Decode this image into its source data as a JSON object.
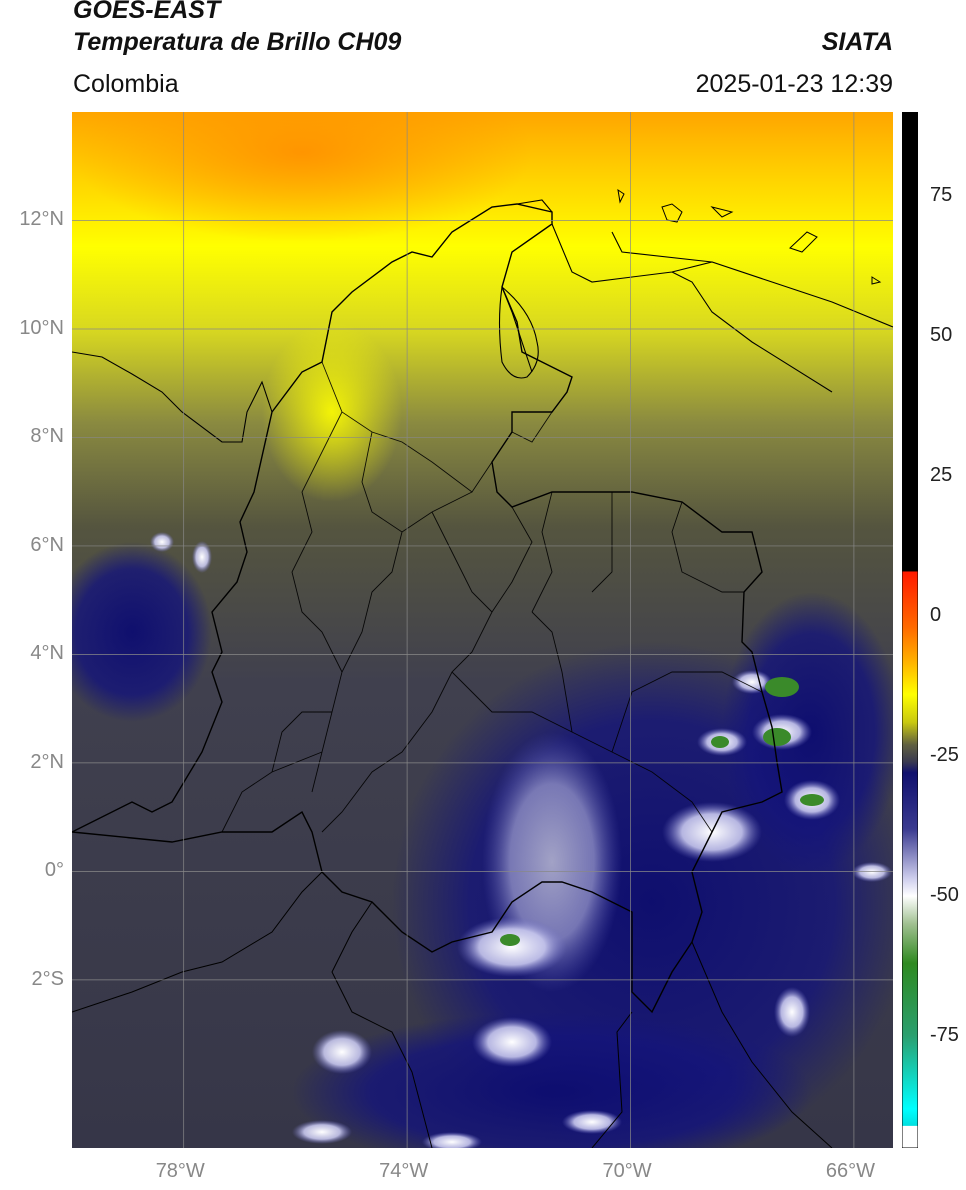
{
  "header": {
    "satellite": "GOES-EAST",
    "product": "Temperatura de Brillo CH09",
    "organization": "SIATA",
    "region": "Colombia",
    "timestamp": "2025-01-23 12:39"
  },
  "map": {
    "lon_range": [
      -80,
      -65.3
    ],
    "lat_range": [
      -5.1,
      14.0
    ],
    "lon_ticks": [
      {
        "value": -78,
        "label": "78°W"
      },
      {
        "value": -74,
        "label": "74°W"
      },
      {
        "value": -70,
        "label": "70°W"
      },
      {
        "value": -66,
        "label": "66°W"
      }
    ],
    "lat_ticks": [
      {
        "value": 12,
        "label": "12°N"
      },
      {
        "value": 10,
        "label": "10°N"
      },
      {
        "value": 8,
        "label": "8°N"
      },
      {
        "value": 6,
        "label": "6°N"
      },
      {
        "value": 4,
        "label": "4°N"
      },
      {
        "value": 2,
        "label": "2°N"
      },
      {
        "value": 0,
        "label": "0°"
      },
      {
        "value": -2,
        "label": "2°S"
      }
    ],
    "gridlines": true
  },
  "colorbar": {
    "range": [
      -95,
      90
    ],
    "ticks": [
      {
        "value": 75,
        "label": "75"
      },
      {
        "value": 50,
        "label": "50"
      },
      {
        "value": 25,
        "label": "25"
      },
      {
        "value": 0,
        "label": "0"
      },
      {
        "value": -25,
        "label": "-25"
      },
      {
        "value": -50,
        "label": "-50"
      },
      {
        "value": -75,
        "label": "-75"
      }
    ],
    "stops": [
      {
        "value": 90,
        "color": "#000000"
      },
      {
        "value": 8,
        "color": "#000000"
      },
      {
        "value": 7.9,
        "color": "#ff1a00"
      },
      {
        "value": -2,
        "color": "#ff6a00"
      },
      {
        "value": -8,
        "color": "#ffb000"
      },
      {
        "value": -14,
        "color": "#ffff00"
      },
      {
        "value": -19,
        "color": "#c8c810"
      },
      {
        "value": -23,
        "color": "#606040"
      },
      {
        "value": -26,
        "color": "#3a3a50"
      },
      {
        "value": -28,
        "color": "#10106e"
      },
      {
        "value": -38,
        "color": "#3a3a90"
      },
      {
        "value": -47,
        "color": "#d0d0ee"
      },
      {
        "value": -50,
        "color": "#ffffff"
      },
      {
        "value": -55,
        "color": "#a0c090"
      },
      {
        "value": -62,
        "color": "#2f8a20"
      },
      {
        "value": -75,
        "color": "#2aa070"
      },
      {
        "value": -88,
        "color": "#00ffff"
      },
      {
        "value": -91,
        "color": "#00e0e0"
      },
      {
        "value": -91.1,
        "color": "#ffffff"
      },
      {
        "value": -95,
        "color": "#ffffff"
      }
    ]
  }
}
